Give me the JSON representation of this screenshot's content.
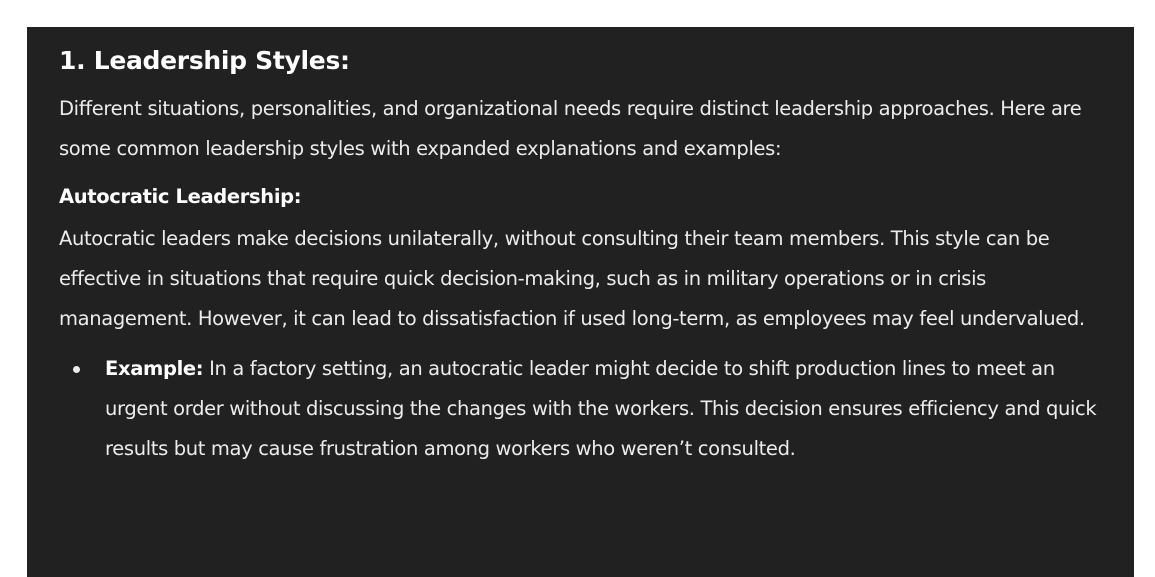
{
  "section": {
    "title": "1. Leadership Styles:",
    "intro": "Different situations, personalities, and organizational needs require distinct leadership approaches. Here are some common leadership styles with expanded explanations and examples:"
  },
  "autocratic": {
    "heading": "Autocratic Leadership:",
    "description": "Autocratic leaders make decisions unilaterally, without consulting their team members. This style can be effective in situations that require quick decision-making, such as in military operations or in crisis management. However, it can lead to dissatisfaction if used long-term, as employees may feel undervalued.",
    "example_label": "Example:",
    "example_text": " In a factory setting, an autocratic leader might decide to shift production lines to meet an urgent order without discussing the changes with the workers. This decision ensures efficiency and quick results but may cause frustration among workers who weren’t consulted."
  }
}
